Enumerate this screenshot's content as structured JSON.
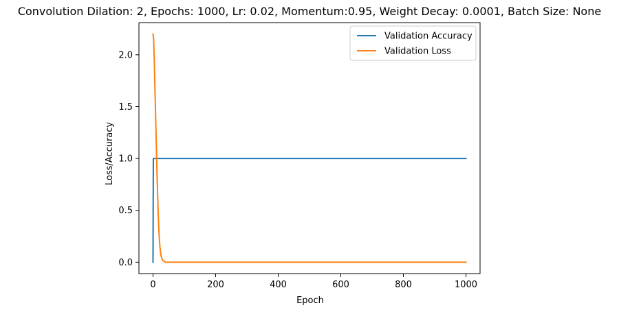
{
  "chart_data": {
    "type": "line",
    "title": "Convolution Dilation: 2, Epochs: 1000, Lr: 0.02, Momentum:0.95, Weight Decay: 0.0001, Batch Size: None",
    "xlabel": "Epoch",
    "ylabel": "Loss/Accuracy",
    "xlim": [
      -45,
      1045
    ],
    "ylim": [
      -0.11,
      2.31
    ],
    "xticks": [
      0,
      200,
      400,
      600,
      800,
      1000
    ],
    "xtick_labels": [
      "0",
      "200",
      "400",
      "600",
      "800",
      "1000"
    ],
    "yticks": [
      0.0,
      0.5,
      1.0,
      1.5,
      2.0
    ],
    "ytick_labels": [
      "0.0",
      "0.5",
      "1.0",
      "1.5",
      "2.0"
    ],
    "grid": false,
    "legend_position": "top-right",
    "series": [
      {
        "name": "Validation Accuracy",
        "color": "#1f77b4",
        "x": [
          0,
          1,
          2,
          1000
        ],
        "y": [
          0.0,
          1.0,
          1.0,
          1.0
        ]
      },
      {
        "name": "Validation Loss",
        "color": "#ff7f0e",
        "x": [
          0,
          2,
          4,
          6,
          8,
          10,
          12,
          14,
          16,
          18,
          20,
          22,
          25,
          30,
          40,
          60,
          100,
          200,
          400,
          600,
          800,
          1000
        ],
        "y": [
          2.2,
          2.15,
          1.95,
          1.7,
          1.45,
          1.2,
          0.95,
          0.72,
          0.52,
          0.36,
          0.24,
          0.15,
          0.07,
          0.02,
          0.0,
          0.0,
          0.0,
          0.0,
          0.0,
          0.0,
          0.0,
          0.0
        ]
      }
    ]
  }
}
